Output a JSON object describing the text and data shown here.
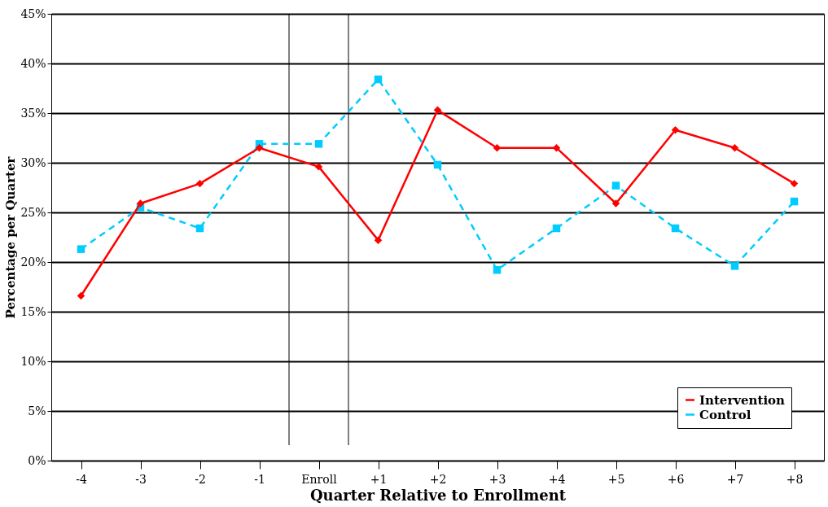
{
  "chart_data": {
    "type": "line",
    "xlabel": "Quarter Relative to Enrollment",
    "ylabel": "Percentage per Quarter",
    "x": [
      -4,
      -3,
      -2,
      -1,
      0,
      1,
      2,
      3,
      4,
      5,
      6,
      7,
      8
    ],
    "series": [
      {
        "name": "Intervention",
        "color": "#ff0000",
        "marker": "diamond",
        "line_style": "solid",
        "values": [
          16.6,
          25.9,
          27.9,
          31.5,
          29.6,
          22.2,
          35.3,
          31.5,
          31.5,
          25.9,
          33.3,
          31.5,
          27.9
        ]
      },
      {
        "name": "Control",
        "color": "#00ccff",
        "marker": "square",
        "line_style": "dashed",
        "values": [
          21.3,
          25.5,
          23.4,
          31.9,
          31.9,
          38.4,
          29.8,
          19.2,
          23.4,
          27.7,
          23.4,
          19.6,
          26.1
        ]
      }
    ],
    "xlim": [
      -4.5,
      8.5
    ],
    "xticks": [
      -4,
      -3,
      -2,
      -1,
      {
        "value": 0,
        "label": "Enroll"
      },
      {
        "value": 1,
        "label": "+1"
      },
      {
        "value": 2,
        "label": "+2"
      },
      {
        "value": 3,
        "label": "+3"
      },
      {
        "value": 4,
        "label": "+4"
      },
      {
        "value": 5,
        "label": "+5"
      },
      {
        "value": 6,
        "label": "+6"
      },
      {
        "value": 7,
        "label": "+7"
      },
      {
        "value": 8,
        "label": "+8"
      }
    ],
    "ylim": [
      0,
      45
    ],
    "yticks": [
      {
        "value": 0,
        "label": "0%"
      },
      {
        "value": 5,
        "label": "5%"
      },
      {
        "value": 10,
        "label": "10%"
      },
      {
        "value": 15,
        "label": "15%"
      },
      {
        "value": 20,
        "label": "20%"
      },
      {
        "value": 25,
        "label": "25%"
      },
      {
        "value": 30,
        "label": "30%"
      },
      {
        "value": 35,
        "label": "35%"
      },
      {
        "value": 40,
        "label": "40%"
      },
      {
        "value": 45,
        "label": "45%"
      }
    ],
    "ref_lines": [
      {
        "axis": "x",
        "value": -0.5,
        "color": "#000000"
      },
      {
        "axis": "x",
        "value": 0.5,
        "color": "#000000"
      }
    ],
    "grid": "y",
    "legend": "bottom right"
  }
}
